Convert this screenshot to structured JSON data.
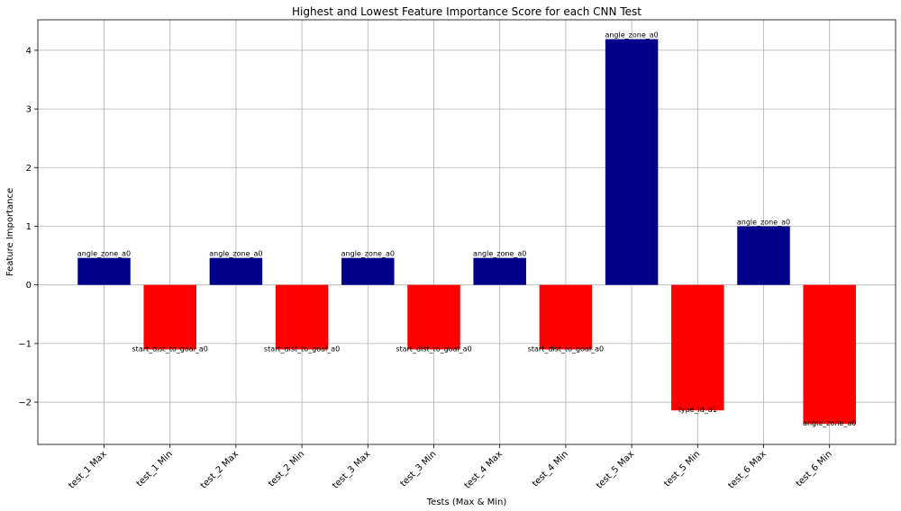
{
  "chart_data": {
    "type": "bar",
    "title": "Highest and Lowest Feature Importance Score for each CNN Test",
    "xlabel": "Tests (Max & Min)",
    "ylabel": "Feature Importance",
    "ylim": [
      -2.72,
      4.52
    ],
    "yticks": [
      -2,
      -1,
      0,
      1,
      2,
      3,
      4
    ],
    "ytick_labels": [
      "−2",
      "−1",
      "0",
      "1",
      "2",
      "3",
      "4"
    ],
    "grid": true,
    "categories": [
      "test_1 Max",
      "test_1 Min",
      "test_2 Max",
      "test_2 Min",
      "test_3 Max",
      "test_3 Min",
      "test_4 Max",
      "test_4 Min",
      "test_5 Max",
      "test_5 Min",
      "test_6 Max",
      "test_6 Min"
    ],
    "values": [
      0.46,
      -1.1,
      0.46,
      -1.1,
      0.46,
      -1.1,
      0.46,
      -1.1,
      4.19,
      -2.14,
      1.0,
      -2.37
    ],
    "bar_labels": [
      "angle_zone_a0",
      "start_dist_to_goal_a0",
      "angle_zone_a0",
      "start_dist_to_goal_a0",
      "angle_zone_a0",
      "start_dist_to_goal_a0",
      "angle_zone_a0",
      "start_dist_to_goal_a0",
      "angle_zone_a0",
      "type_id_a1",
      "angle_zone_a0",
      "angle_zone_a0"
    ],
    "colors": {
      "positive": "#00008b",
      "negative": "#ff0000"
    }
  }
}
